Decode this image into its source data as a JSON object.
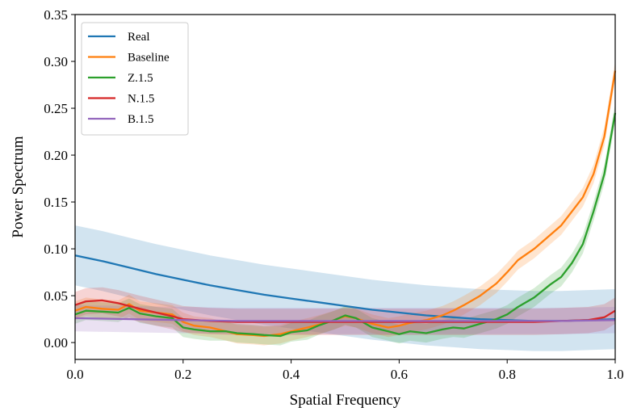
{
  "chart_data": {
    "type": "line",
    "title": "",
    "xlabel": "Spatial Frequency",
    "ylabel": "Power Spectrum",
    "xlim": [
      0.0,
      1.0
    ],
    "ylim": [
      -0.018,
      0.35
    ],
    "xticks": [
      0.0,
      0.2,
      0.4,
      0.6,
      0.8,
      1.0
    ],
    "xtick_labels": [
      "0.0",
      "0.2",
      "0.4",
      "0.6",
      "0.8",
      "1.0"
    ],
    "yticks": [
      0.0,
      0.05,
      0.1,
      0.15,
      0.2,
      0.25,
      0.3,
      0.35
    ],
    "ytick_labels": [
      "0.00",
      "0.05",
      "0.10",
      "0.15",
      "0.20",
      "0.25",
      "0.30",
      "0.35"
    ],
    "grid": false,
    "legend_position": "top-left",
    "series": [
      {
        "name": "Real",
        "color": "#1f77b4",
        "x": [
          0.0,
          0.05,
          0.1,
          0.15,
          0.2,
          0.25,
          0.3,
          0.35,
          0.4,
          0.45,
          0.5,
          0.55,
          0.6,
          0.65,
          0.7,
          0.75,
          0.8,
          0.85,
          0.9,
          0.95,
          1.0
        ],
        "y": [
          0.093,
          0.087,
          0.08,
          0.073,
          0.067,
          0.061,
          0.056,
          0.051,
          0.047,
          0.043,
          0.039,
          0.035,
          0.032,
          0.029,
          0.027,
          0.025,
          0.024,
          0.023,
          0.023,
          0.024,
          0.025
        ],
        "band": 0.032
      },
      {
        "name": "Baseline",
        "color": "#ff7f0e",
        "x": [
          0.0,
          0.02,
          0.05,
          0.08,
          0.1,
          0.12,
          0.15,
          0.18,
          0.2,
          0.22,
          0.25,
          0.28,
          0.3,
          0.33,
          0.35,
          0.38,
          0.4,
          0.43,
          0.45,
          0.48,
          0.5,
          0.52,
          0.55,
          0.58,
          0.6,
          0.62,
          0.65,
          0.68,
          0.7,
          0.72,
          0.75,
          0.78,
          0.8,
          0.82,
          0.85,
          0.88,
          0.9,
          0.92,
          0.94,
          0.96,
          0.98,
          1.0
        ],
        "y": [
          0.034,
          0.038,
          0.036,
          0.035,
          0.041,
          0.034,
          0.032,
          0.03,
          0.022,
          0.018,
          0.016,
          0.012,
          0.009,
          0.008,
          0.007,
          0.009,
          0.012,
          0.016,
          0.019,
          0.024,
          0.028,
          0.026,
          0.02,
          0.016,
          0.018,
          0.021,
          0.024,
          0.029,
          0.034,
          0.04,
          0.05,
          0.063,
          0.075,
          0.088,
          0.1,
          0.115,
          0.125,
          0.14,
          0.155,
          0.18,
          0.22,
          0.29
        ],
        "band": 0.01
      },
      {
        "name": "Z.1.5",
        "color": "#2ca02c",
        "x": [
          0.0,
          0.02,
          0.05,
          0.08,
          0.1,
          0.12,
          0.15,
          0.18,
          0.2,
          0.22,
          0.25,
          0.28,
          0.3,
          0.33,
          0.35,
          0.38,
          0.4,
          0.43,
          0.45,
          0.48,
          0.5,
          0.52,
          0.55,
          0.58,
          0.6,
          0.62,
          0.65,
          0.68,
          0.7,
          0.72,
          0.75,
          0.78,
          0.8,
          0.82,
          0.85,
          0.88,
          0.9,
          0.92,
          0.94,
          0.96,
          0.98,
          1.0
        ],
        "y": [
          0.03,
          0.034,
          0.033,
          0.032,
          0.037,
          0.031,
          0.028,
          0.026,
          0.016,
          0.014,
          0.012,
          0.012,
          0.01,
          0.009,
          0.008,
          0.007,
          0.011,
          0.013,
          0.018,
          0.024,
          0.029,
          0.026,
          0.016,
          0.012,
          0.009,
          0.012,
          0.01,
          0.014,
          0.016,
          0.015,
          0.02,
          0.025,
          0.03,
          0.038,
          0.048,
          0.062,
          0.07,
          0.085,
          0.105,
          0.14,
          0.18,
          0.245
        ],
        "band": 0.01
      },
      {
        "name": "N.1.5",
        "color": "#d62728",
        "x": [
          0.0,
          0.02,
          0.05,
          0.08,
          0.1,
          0.12,
          0.15,
          0.18,
          0.2,
          0.25,
          0.3,
          0.35,
          0.4,
          0.45,
          0.5,
          0.55,
          0.6,
          0.65,
          0.7,
          0.75,
          0.8,
          0.85,
          0.9,
          0.95,
          0.98,
          1.0
        ],
        "y": [
          0.04,
          0.044,
          0.045,
          0.042,
          0.039,
          0.036,
          0.032,
          0.028,
          0.025,
          0.023,
          0.022,
          0.022,
          0.022,
          0.022,
          0.022,
          0.022,
          0.022,
          0.022,
          0.022,
          0.022,
          0.022,
          0.022,
          0.023,
          0.024,
          0.027,
          0.034
        ],
        "band": 0.014
      },
      {
        "name": "B.1.5",
        "color": "#9467bd",
        "x": [
          0.0,
          0.1,
          0.2,
          0.3,
          0.4,
          0.5,
          0.6,
          0.7,
          0.8,
          0.9,
          1.0
        ],
        "y": [
          0.026,
          0.025,
          0.024,
          0.023,
          0.023,
          0.023,
          0.023,
          0.023,
          0.023,
          0.023,
          0.024
        ],
        "band": 0.014
      }
    ]
  }
}
